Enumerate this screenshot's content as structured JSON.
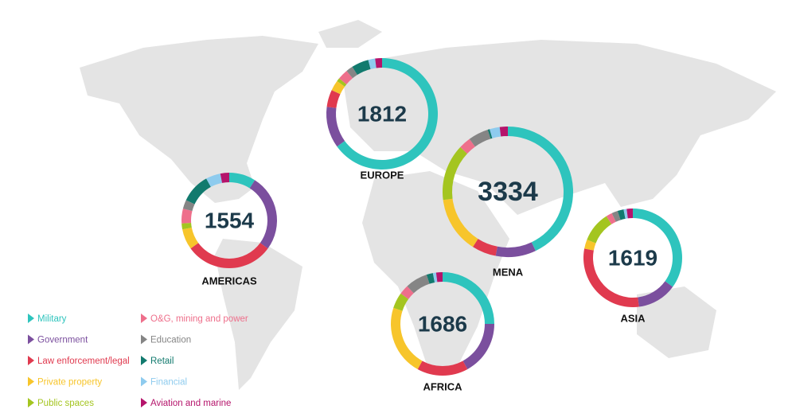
{
  "legend": {
    "items": [
      {
        "name": "Military",
        "color": "#2ec4bd"
      },
      {
        "name": "Government",
        "color": "#7b4f9e"
      },
      {
        "name": "Law enforcement/legal",
        "color": "#e03a4f"
      },
      {
        "name": "Private property",
        "color": "#f7c52b"
      },
      {
        "name": "Public spaces",
        "color": "#a4c520"
      },
      {
        "name": "O&G, mining and power",
        "color": "#ee6f8b"
      },
      {
        "name": "Education",
        "color": "#858585"
      },
      {
        "name": "Retail",
        "color": "#127a6e"
      },
      {
        "name": "Financial",
        "color": "#8ecbee"
      },
      {
        "name": "Aviation and marine",
        "color": "#b5146b"
      }
    ]
  },
  "chart_data": [
    {
      "type": "donut",
      "title": "EUROPE",
      "total": 1812,
      "values": [
        65,
        12,
        5,
        3,
        1,
        3,
        2,
        5,
        2,
        2
      ]
    },
    {
      "type": "donut",
      "title": "AMERICAS",
      "total": 1554,
      "values": [
        9,
        26,
        30,
        7,
        2,
        5,
        3,
        10,
        5,
        3
      ]
    },
    {
      "type": "donut",
      "title": "MENA",
      "total": 3334,
      "values": [
        43,
        10,
        6,
        14,
        14,
        3,
        5,
        0.5,
        2.5,
        2
      ]
    },
    {
      "type": "donut",
      "title": "AFRICA",
      "total": 1686,
      "values": [
        25,
        17,
        16,
        22,
        5,
        3,
        7,
        2,
        1,
        2
      ]
    },
    {
      "type": "donut",
      "title": "ASIA",
      "total": 1619,
      "values": [
        35,
        13,
        30,
        3,
        10,
        2,
        2,
        2,
        1,
        2
      ]
    }
  ]
}
